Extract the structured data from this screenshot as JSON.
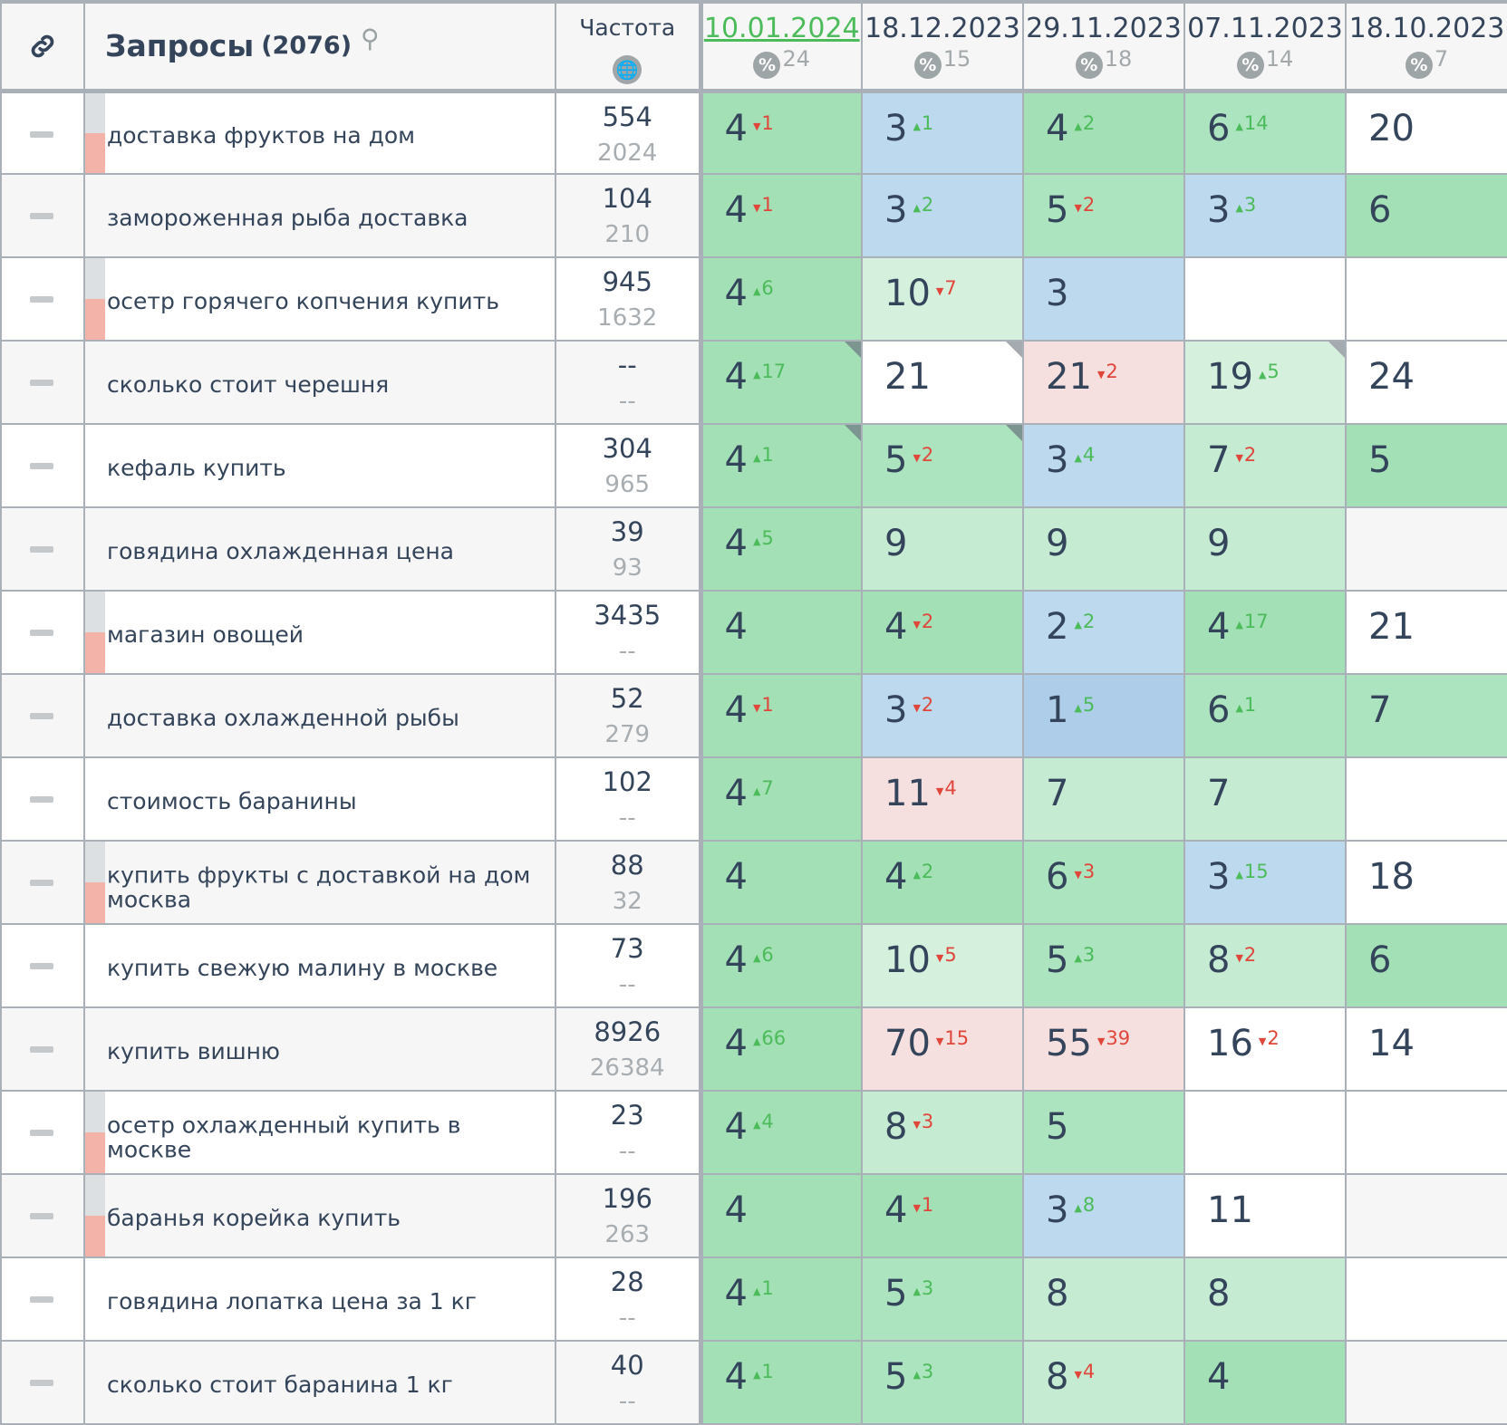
{
  "header": {
    "link_icon": "link-icon",
    "queries_label": "Запросы",
    "queries_count": "(2076)",
    "search_icon": "search-icon",
    "frequency_label": "Частота",
    "globe_icon": "globe-icon",
    "dates": [
      {
        "date": "10.01.2024",
        "percent": "24",
        "active": true
      },
      {
        "date": "18.12.2023",
        "percent": "15"
      },
      {
        "date": "29.11.2023",
        "percent": "18"
      },
      {
        "date": "07.11.2023",
        "percent": "14"
      },
      {
        "date": "18.10.2023",
        "percent": "7"
      }
    ],
    "percent_icon_glyph": "%"
  },
  "colors": {
    "green_dark": "#a3e0b6",
    "green": "#ade4c0",
    "green_light": "#c6ebd3",
    "green_pale": "#d6f0de",
    "blue": "#bdd9ee",
    "blue_dark": "#aecde9",
    "pink": "#f6e0df",
    "up": "#4cbb5a",
    "down": "#e0463a"
  },
  "rows": [
    {
      "query": "доставка фруктов на дом",
      "freq": "554",
      "freq2": "2024",
      "ind": true,
      "cells": [
        [
          "4",
          "down",
          "1",
          "g1"
        ],
        [
          "3",
          "up",
          "1",
          "b1"
        ],
        [
          "4",
          "up",
          "2",
          "g1"
        ],
        [
          "6",
          "up",
          "14",
          "g2"
        ],
        [
          "20",
          "",
          "",
          "w"
        ]
      ]
    },
    {
      "query": "замороженная рыба доставка",
      "freq": "104",
      "freq2": "210",
      "ind": false,
      "cells": [
        [
          "4",
          "down",
          "1",
          "g1"
        ],
        [
          "3",
          "up",
          "2",
          "b1"
        ],
        [
          "5",
          "down",
          "2",
          "g2"
        ],
        [
          "3",
          "up",
          "3",
          "b1"
        ],
        [
          "6",
          "",
          "",
          "g1"
        ]
      ]
    },
    {
      "query": "осетр горячего копчения купить",
      "freq": "945",
      "freq2": "1632",
      "ind": true,
      "cells": [
        [
          "4",
          "up",
          "6",
          "g1"
        ],
        [
          "10",
          "down",
          "7",
          "g4"
        ],
        [
          "3",
          "",
          "",
          "b1"
        ],
        [
          "",
          "",
          "",
          ""
        ],
        [
          "",
          "",
          "",
          ""
        ]
      ]
    },
    {
      "query": "сколько стоит черешня",
      "freq": "--",
      "freq2": "--",
      "ind": false,
      "cells": [
        [
          "4",
          "up",
          "17",
          "g1",
          "f"
        ],
        [
          "21",
          "",
          "",
          "w",
          "fw"
        ],
        [
          "21",
          "down",
          "2",
          "p"
        ],
        [
          "19",
          "up",
          "5",
          "g4",
          "fw"
        ],
        [
          "24",
          "",
          "",
          "w"
        ]
      ]
    },
    {
      "query": "кефаль купить",
      "freq": "304",
      "freq2": "965",
      "ind": false,
      "cells": [
        [
          "4",
          "up",
          "1",
          "g1",
          "f"
        ],
        [
          "5",
          "down",
          "2",
          "g2",
          "f"
        ],
        [
          "3",
          "up",
          "4",
          "b1"
        ],
        [
          "7",
          "down",
          "2",
          "g3"
        ],
        [
          "5",
          "",
          "",
          "g1"
        ]
      ]
    },
    {
      "query": "говядина охлажденная цена",
      "freq": "39",
      "freq2": "93",
      "ind": false,
      "cells": [
        [
          "4",
          "up",
          "5",
          "g1"
        ],
        [
          "9",
          "",
          "",
          "g3"
        ],
        [
          "9",
          "",
          "",
          "g3"
        ],
        [
          "9",
          "",
          "",
          "g3"
        ],
        [
          "",
          "",
          "",
          ""
        ]
      ]
    },
    {
      "query": "магазин овощей",
      "freq": "3435",
      "freq2": "--",
      "ind": true,
      "cells": [
        [
          "4",
          "",
          "",
          "g1"
        ],
        [
          "4",
          "down",
          "2",
          "g1"
        ],
        [
          "2",
          "up",
          "2",
          "b1"
        ],
        [
          "4",
          "up",
          "17",
          "g1"
        ],
        [
          "21",
          "",
          "",
          "w"
        ]
      ]
    },
    {
      "query": "доставка охлажденной рыбы",
      "freq": "52",
      "freq2": "279",
      "ind": false,
      "cells": [
        [
          "4",
          "down",
          "1",
          "g1"
        ],
        [
          "3",
          "down",
          "2",
          "b1"
        ],
        [
          "1",
          "up",
          "5",
          "b2"
        ],
        [
          "6",
          "up",
          "1",
          "g2"
        ],
        [
          "7",
          "",
          "",
          "g2"
        ]
      ]
    },
    {
      "query": "стоимость баранины",
      "freq": "102",
      "freq2": "--",
      "ind": false,
      "cells": [
        [
          "4",
          "up",
          "7",
          "g1"
        ],
        [
          "11",
          "down",
          "4",
          "p"
        ],
        [
          "7",
          "",
          "",
          "g3"
        ],
        [
          "7",
          "",
          "",
          "g3"
        ],
        [
          "",
          "",
          "",
          ""
        ]
      ]
    },
    {
      "query": "купить фрукты с доставкой на дом москва",
      "freq": "88",
      "freq2": "32",
      "ind": true,
      "cells": [
        [
          "4",
          "",
          "",
          "g1"
        ],
        [
          "4",
          "up",
          "2",
          "g1"
        ],
        [
          "6",
          "down",
          "3",
          "g2"
        ],
        [
          "3",
          "up",
          "15",
          "b1"
        ],
        [
          "18",
          "",
          "",
          "w"
        ]
      ]
    },
    {
      "query": "купить свежую малину в москве",
      "freq": "73",
      "freq2": "--",
      "ind": false,
      "cells": [
        [
          "4",
          "up",
          "6",
          "g1"
        ],
        [
          "10",
          "down",
          "5",
          "g4"
        ],
        [
          "5",
          "up",
          "3",
          "g2"
        ],
        [
          "8",
          "down",
          "2",
          "g3"
        ],
        [
          "6",
          "",
          "",
          "g1"
        ]
      ]
    },
    {
      "query": "купить вишню",
      "freq": "8926",
      "freq2": "26384",
      "ind": false,
      "cells": [
        [
          "4",
          "up",
          "66",
          "g1"
        ],
        [
          "70",
          "down",
          "15",
          "p"
        ],
        [
          "55",
          "down",
          "39",
          "p"
        ],
        [
          "16",
          "down",
          "2",
          "w"
        ],
        [
          "14",
          "",
          "",
          "w"
        ]
      ]
    },
    {
      "query": "осетр охлажденный купить в москве",
      "freq": "23",
      "freq2": "--",
      "ind": true,
      "cells": [
        [
          "4",
          "up",
          "4",
          "g1"
        ],
        [
          "8",
          "down",
          "3",
          "g3"
        ],
        [
          "5",
          "",
          "",
          "g2"
        ],
        [
          "",
          "",
          "",
          ""
        ],
        [
          "",
          "",
          "",
          ""
        ]
      ]
    },
    {
      "query": "баранья корейка купить",
      "freq": "196",
      "freq2": "263",
      "ind": true,
      "cells": [
        [
          "4",
          "",
          "",
          "g1"
        ],
        [
          "4",
          "down",
          "1",
          "g1"
        ],
        [
          "3",
          "up",
          "8",
          "b1"
        ],
        [
          "11",
          "",
          "",
          "w"
        ],
        [
          "",
          "",
          "",
          ""
        ]
      ]
    },
    {
      "query": "говядина лопатка цена за 1 кг",
      "freq": "28",
      "freq2": "--",
      "ind": false,
      "cells": [
        [
          "4",
          "up",
          "1",
          "g1"
        ],
        [
          "5",
          "up",
          "3",
          "g2"
        ],
        [
          "8",
          "",
          "",
          "g3"
        ],
        [
          "8",
          "",
          "",
          "g3"
        ],
        [
          "",
          "",
          "",
          ""
        ]
      ]
    },
    {
      "query": "сколько стоит баранина 1 кг",
      "freq": "40",
      "freq2": "--",
      "ind": false,
      "cells": [
        [
          "4",
          "up",
          "1",
          "g1"
        ],
        [
          "5",
          "up",
          "3",
          "g2"
        ],
        [
          "8",
          "down",
          "4",
          "g3"
        ],
        [
          "4",
          "",
          "",
          "g1"
        ],
        [
          "",
          "",
          "",
          ""
        ]
      ]
    }
  ]
}
